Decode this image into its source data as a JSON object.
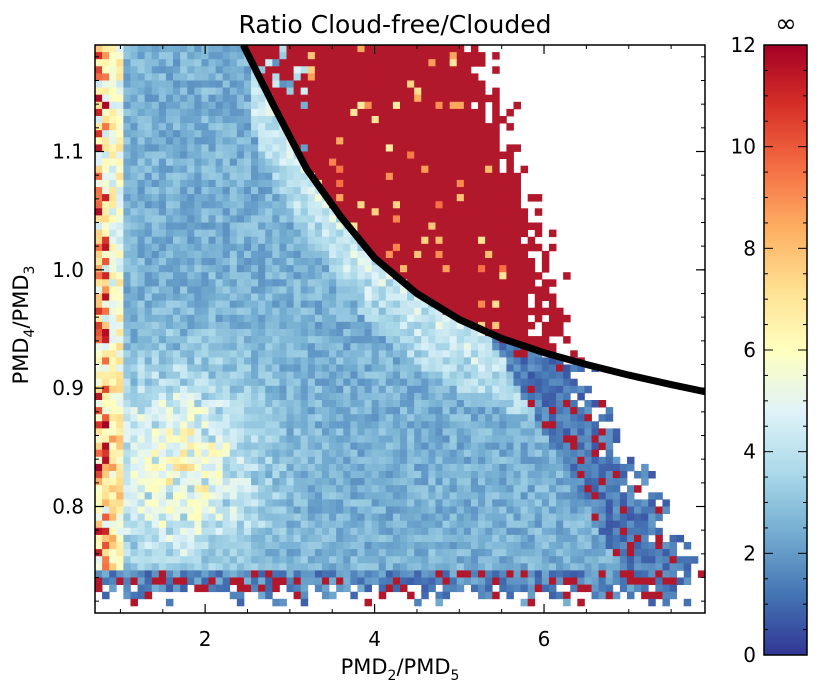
{
  "chart_data": {
    "type": "heatmap",
    "title": "Ratio Cloud-free/Clouded",
    "xlabel": {
      "base1": "PMD",
      "sub1": "2",
      "sep": "/",
      "base2": "PMD",
      "sub2": "5"
    },
    "ylabel": {
      "base1": "PMD",
      "sub1": "4",
      "sep": "/",
      "base2": "PMD",
      "sub2": "3"
    },
    "xlim": [
      0.7,
      7.9
    ],
    "ylim": [
      0.71,
      1.19
    ],
    "x_ticks": [
      2,
      4,
      6
    ],
    "y_ticks": [
      0.8,
      0.9,
      1.0,
      1.1
    ],
    "x_tick_labels": [
      "2",
      "4",
      "6"
    ],
    "y_tick_labels": [
      "0.8",
      "0.9",
      "1.0",
      "1.1"
    ],
    "colorbar": {
      "range": [
        0,
        12
      ],
      "ticks": [
        0,
        2,
        4,
        6,
        8,
        10,
        12
      ],
      "tick_labels": [
        "0",
        "2",
        "4",
        "6",
        "8",
        "10",
        "12"
      ],
      "top_label": "∞",
      "colormap": [
        "#313695",
        "#4575b4",
        "#74add1",
        "#abd9e9",
        "#e0f3f8",
        "#ffffbf",
        "#fee090",
        "#fdae61",
        "#f46d43",
        "#d73027",
        "#a50026"
      ]
    },
    "boundary_curve": {
      "color": "#000000",
      "points": [
        [
          2.45,
          1.19
        ],
        [
          2.8,
          1.14
        ],
        [
          3.2,
          1.085
        ],
        [
          3.6,
          1.045
        ],
        [
          4.0,
          1.01
        ],
        [
          4.5,
          0.98
        ],
        [
          5.0,
          0.958
        ],
        [
          5.5,
          0.942
        ],
        [
          6.0,
          0.93
        ],
        [
          6.5,
          0.92
        ],
        [
          7.0,
          0.911
        ],
        [
          7.5,
          0.903
        ],
        [
          7.9,
          0.897
        ]
      ]
    },
    "grid": false,
    "legend": "colorbar-right"
  }
}
